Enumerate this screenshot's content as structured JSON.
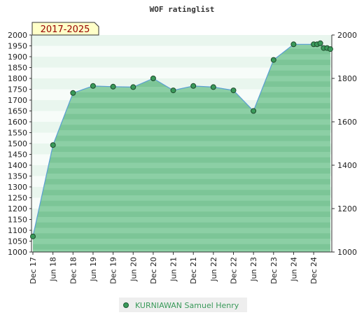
{
  "chart_data": {
    "type": "area",
    "title": "WOF ratinglist",
    "period_label": "2017-2025",
    "xlabel": "",
    "ylabel": "",
    "ylim": [
      1000,
      2000
    ],
    "y_ticks_left": [
      1000,
      1050,
      1100,
      1150,
      1200,
      1250,
      1300,
      1350,
      1400,
      1450,
      1500,
      1550,
      1600,
      1650,
      1700,
      1750,
      1800,
      1850,
      1900,
      1950,
      2000
    ],
    "y_ticks_right": [
      1000,
      1200,
      1400,
      1600,
      1800,
      2000
    ],
    "x_ticks": [
      "Dec 17",
      "Jun 18",
      "Dec 18",
      "Jun 19",
      "Dec 19",
      "Jun 20",
      "Dec 20",
      "Jun 21",
      "Dec 21",
      "Jun 22",
      "Dec 22",
      "Jun 23",
      "Dec 23",
      "Jun 24",
      "Dec 24"
    ],
    "grid": false,
    "legend_position": "bottom",
    "colors": {
      "fill": "#7cc597",
      "line": "#5a9fd4",
      "marker": "#3a9a5a",
      "legend_text": "#3a9a5a"
    },
    "series": [
      {
        "name": "KURNIAWAN Samuel Henry",
        "points": [
          {
            "x": 0,
            "y": 1072
          },
          {
            "x": 1,
            "y": 1493
          },
          {
            "x": 2,
            "y": 1733
          },
          {
            "x": 3,
            "y": 1765
          },
          {
            "x": 4,
            "y": 1762
          },
          {
            "x": 5,
            "y": 1760
          },
          {
            "x": 6,
            "y": 1800
          },
          {
            "x": 7,
            "y": 1745
          },
          {
            "x": 8,
            "y": 1765
          },
          {
            "x": 9,
            "y": 1760
          },
          {
            "x": 10,
            "y": 1745
          },
          {
            "x": 11,
            "y": 1650
          },
          {
            "x": 12,
            "y": 1885
          },
          {
            "x": 13,
            "y": 1957
          },
          {
            "x": 14,
            "y": 1957
          },
          {
            "x": 14.17,
            "y": 1957
          },
          {
            "x": 14.33,
            "y": 1962
          },
          {
            "x": 14.5,
            "y": 1940
          },
          {
            "x": 14.67,
            "y": 1940
          },
          {
            "x": 14.83,
            "y": 1935
          }
        ]
      }
    ]
  }
}
